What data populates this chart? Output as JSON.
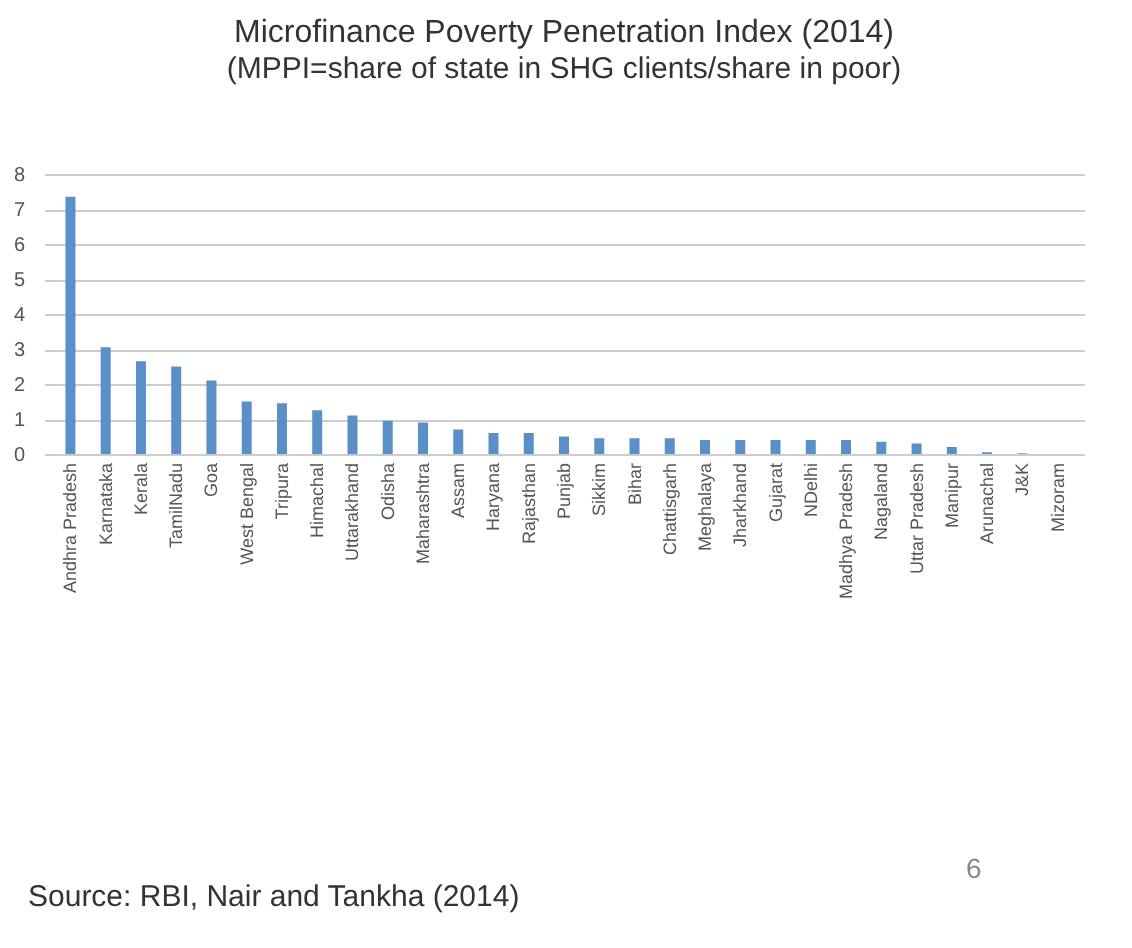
{
  "chart_data": {
    "type": "bar",
    "title": "Microfinance Poverty Penetration Index  (2014)",
    "subtitle": "(MPPI=share of state in SHG clients/share in poor)",
    "categories": [
      "Andhra Pradesh",
      "Karnataka",
      "Kerala",
      "TamilNadu",
      "Goa",
      "West Bengal",
      "Tripura",
      "Himachal",
      "Uttarakhand",
      "Odisha",
      "Maharashtra",
      "Assam",
      "Haryana",
      "Rajasthan",
      "Punjab",
      "Sikkim",
      "Bihar",
      "Chattisgarh",
      "Meghalaya",
      "Jharkhand",
      "Gujarat",
      "NDelhi",
      "Madhya Pradesh",
      "Nagaland",
      "Uttar Pradesh",
      "Manipur",
      "Arunachal",
      "J&K",
      "Mizoram"
    ],
    "values": [
      7.35,
      3.05,
      2.65,
      2.5,
      2.1,
      1.5,
      1.45,
      1.25,
      1.1,
      0.95,
      0.9,
      0.7,
      0.6,
      0.6,
      0.5,
      0.45,
      0.45,
      0.45,
      0.4,
      0.4,
      0.4,
      0.4,
      0.4,
      0.35,
      0.3,
      0.2,
      0.05,
      0.02,
      null
    ],
    "color": "#5b8fc7",
    "ylim": [
      0,
      8
    ],
    "yticks": [
      0,
      1,
      2,
      3,
      4,
      5,
      6,
      7,
      8
    ],
    "grid": "y",
    "annotations": [
      "Source: RBI, Nair and Tankha (2014)",
      "6"
    ]
  }
}
